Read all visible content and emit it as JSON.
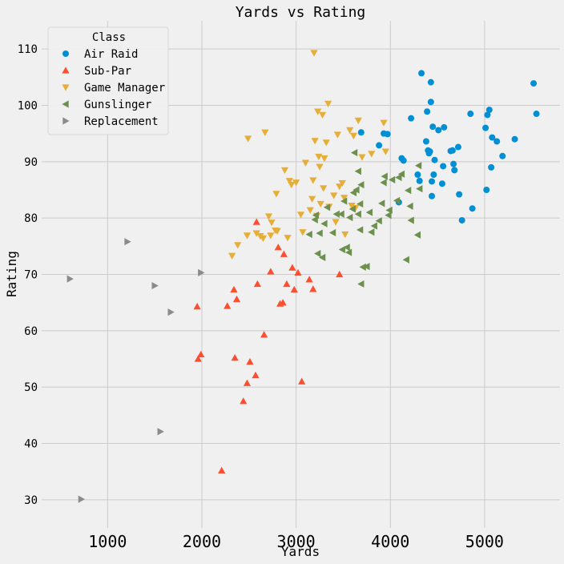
{
  "chart_data": {
    "type": "scatter",
    "title": "Yards vs Rating",
    "xlabel": "Yards",
    "ylabel": "Rating",
    "xlim": [
      300,
      5800
    ],
    "ylim": [
      25,
      115
    ],
    "xticks": [
      "1000",
      "2000",
      "3000",
      "4000",
      "5000"
    ],
    "yticks": [
      "30",
      "40",
      "50",
      "60",
      "70",
      "80",
      "90",
      "100",
      "110"
    ],
    "grid": true,
    "legend": {
      "title": "Class",
      "placement": "top-left"
    },
    "series": [
      {
        "name": "Air Raid",
        "marker": "circle",
        "color": "#008fd5",
        "points": [
          [
            3690,
            95.2
          ],
          [
            3880,
            92.9
          ],
          [
            3930,
            95
          ],
          [
            3970,
            94.9
          ],
          [
            4090,
            82.8
          ],
          [
            4120,
            90.6
          ],
          [
            4140,
            90.2
          ],
          [
            4220,
            97.7
          ],
          [
            4290,
            87.7
          ],
          [
            4310,
            86.6
          ],
          [
            4330,
            105.7
          ],
          [
            4380,
            93.6
          ],
          [
            4390,
            98.9
          ],
          [
            4400,
            92
          ],
          [
            4410,
            91.5
          ],
          [
            4420,
            91.8
          ],
          [
            4430,
            104.1
          ],
          [
            4430,
            100.6
          ],
          [
            4440,
            83.9
          ],
          [
            4440,
            86.5
          ],
          [
            4450,
            96.2
          ],
          [
            4460,
            87.7
          ],
          [
            4470,
            90.3
          ],
          [
            4510,
            95.6
          ],
          [
            4550,
            86.1
          ],
          [
            4560,
            89.2
          ],
          [
            4570,
            96.1
          ],
          [
            4640,
            91.9
          ],
          [
            4660,
            92
          ],
          [
            4670,
            89.6
          ],
          [
            4680,
            88.5
          ],
          [
            4720,
            92.6
          ],
          [
            4730,
            84.2
          ],
          [
            4760,
            79.6
          ],
          [
            4850,
            98.5
          ],
          [
            4870,
            81.7
          ],
          [
            5010,
            96
          ],
          [
            5020,
            85
          ],
          [
            5030,
            98.3
          ],
          [
            5050,
            99.2
          ],
          [
            5070,
            89
          ],
          [
            5080,
            94.3
          ],
          [
            5130,
            93.6
          ],
          [
            5190,
            91
          ],
          [
            5320,
            94
          ],
          [
            5520,
            103.9
          ],
          [
            5550,
            98.5
          ]
        ]
      },
      {
        "name": "Sub-Par",
        "marker": "triangle-up",
        "color": "#fc4f30",
        "points": [
          [
            1950,
            64.3
          ],
          [
            1960,
            55
          ],
          [
            1990,
            55.8
          ],
          [
            2210,
            35.2
          ],
          [
            2270,
            64.4
          ],
          [
            2340,
            67.3
          ],
          [
            2350,
            55.2
          ],
          [
            2370,
            65.6
          ],
          [
            2440,
            47.5
          ],
          [
            2480,
            50.7
          ],
          [
            2510,
            54.5
          ],
          [
            2570,
            52.1
          ],
          [
            2580,
            79.3
          ],
          [
            2590,
            68.3
          ],
          [
            2660,
            59.3
          ],
          [
            2730,
            70.5
          ],
          [
            2810,
            74.8
          ],
          [
            2830,
            64.8
          ],
          [
            2860,
            65
          ],
          [
            2870,
            73.6
          ],
          [
            2900,
            68.3
          ],
          [
            2960,
            71.2
          ],
          [
            2980,
            67.3
          ],
          [
            3020,
            70.3
          ],
          [
            3060,
            51
          ],
          [
            3140,
            69.1
          ],
          [
            3180,
            67.4
          ],
          [
            3460,
            70
          ]
        ]
      },
      {
        "name": "Game Manager",
        "marker": "triangle-down",
        "color": "#e5ae38",
        "points": [
          [
            2320,
            73.3
          ],
          [
            2380,
            75.2
          ],
          [
            2480,
            76.9
          ],
          [
            2490,
            94.1
          ],
          [
            2580,
            77.3
          ],
          [
            2620,
            76.8
          ],
          [
            2650,
            76.4
          ],
          [
            2670,
            95.2
          ],
          [
            2710,
            80.3
          ],
          [
            2730,
            76.9
          ],
          [
            2740,
            79.2
          ],
          [
            2780,
            77.8
          ],
          [
            2790,
            84.3
          ],
          [
            2800,
            77.7
          ],
          [
            2880,
            88.5
          ],
          [
            2910,
            76.5
          ],
          [
            2930,
            86.6
          ],
          [
            2950,
            85.9
          ],
          [
            3000,
            86.3
          ],
          [
            3050,
            80.6
          ],
          [
            3070,
            77.5
          ],
          [
            3100,
            89.8
          ],
          [
            3150,
            81.4
          ],
          [
            3170,
            83.4
          ],
          [
            3180,
            86.7
          ],
          [
            3190,
            109.3
          ],
          [
            3200,
            93.7
          ],
          [
            3220,
            80.4
          ],
          [
            3230,
            98.9
          ],
          [
            3240,
            90.9
          ],
          [
            3250,
            89.1
          ],
          [
            3260,
            82.5
          ],
          [
            3280,
            98.3
          ],
          [
            3290,
            85.3
          ],
          [
            3300,
            90.6
          ],
          [
            3320,
            93.4
          ],
          [
            3340,
            100.3
          ],
          [
            3350,
            82
          ],
          [
            3400,
            84
          ],
          [
            3420,
            79.3
          ],
          [
            3440,
            94.8
          ],
          [
            3460,
            85.6
          ],
          [
            3490,
            86.2
          ],
          [
            3510,
            83.6
          ],
          [
            3520,
            77.1
          ],
          [
            3570,
            95.6
          ],
          [
            3590,
            82.2
          ],
          [
            3610,
            94.6
          ],
          [
            3630,
            81.8
          ],
          [
            3660,
            97.3
          ],
          [
            3700,
            90.8
          ],
          [
            3800,
            91.4
          ],
          [
            3930,
            96.9
          ],
          [
            3950,
            91.8
          ]
        ]
      },
      {
        "name": "Gunslinger",
        "marker": "triangle-left",
        "color": "#6d904f",
        "points": [
          [
            3140,
            77.1
          ],
          [
            3200,
            79.7
          ],
          [
            3210,
            80.5
          ],
          [
            3230,
            73.7
          ],
          [
            3250,
            77.3
          ],
          [
            3280,
            73
          ],
          [
            3300,
            79
          ],
          [
            3330,
            81.9
          ],
          [
            3390,
            77.4
          ],
          [
            3430,
            80.7
          ],
          [
            3480,
            80.7
          ],
          [
            3490,
            74.4
          ],
          [
            3510,
            83
          ],
          [
            3540,
            74.8
          ],
          [
            3560,
            73.9
          ],
          [
            3570,
            80.1
          ],
          [
            3600,
            81.6
          ],
          [
            3610,
            84.5
          ],
          [
            3620,
            91.6
          ],
          [
            3640,
            85
          ],
          [
            3660,
            88.3
          ],
          [
            3660,
            80.7
          ],
          [
            3680,
            82.5
          ],
          [
            3680,
            77.9
          ],
          [
            3690,
            68.3
          ],
          [
            3690,
            85.9
          ],
          [
            3710,
            71.3
          ],
          [
            3750,
            71.4
          ],
          [
            3780,
            81
          ],
          [
            3800,
            77.5
          ],
          [
            3830,
            78.6
          ],
          [
            3880,
            79.5
          ],
          [
            3910,
            82.6
          ],
          [
            3930,
            86.3
          ],
          [
            3940,
            87.4
          ],
          [
            3980,
            80.5
          ],
          [
            3990,
            81.4
          ],
          [
            4020,
            86.8
          ],
          [
            4070,
            83.1
          ],
          [
            4090,
            87.2
          ],
          [
            4120,
            87.8
          ],
          [
            4170,
            72.6
          ],
          [
            4190,
            84.9
          ],
          [
            4210,
            82.1
          ],
          [
            4220,
            79.6
          ],
          [
            4290,
            77
          ],
          [
            4300,
            89.3
          ],
          [
            4310,
            85.2
          ]
        ]
      },
      {
        "name": "Replacement",
        "marker": "triangle-right",
        "color": "#8b8b8b",
        "points": [
          [
            600,
            69.2
          ],
          [
            720,
            30.1
          ],
          [
            1210,
            75.8
          ],
          [
            1500,
            68
          ],
          [
            1560,
            42.1
          ],
          [
            1670,
            63.3
          ],
          [
            1990,
            70.3
          ]
        ]
      }
    ]
  }
}
